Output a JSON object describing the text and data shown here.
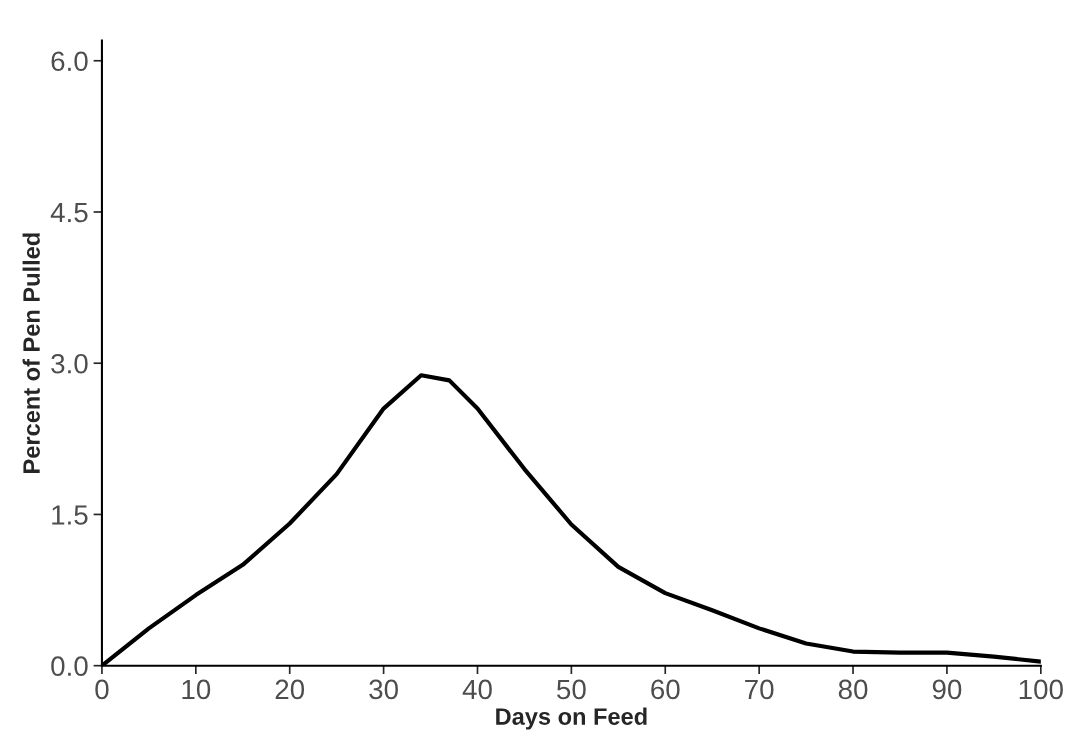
{
  "chart_data": {
    "type": "line",
    "xlabel": "Days on Feed",
    "ylabel": "Percent of Pen Pulled",
    "x": [
      0,
      5,
      10,
      15,
      20,
      25,
      30,
      34,
      37,
      40,
      45,
      50,
      55,
      60,
      65,
      70,
      75,
      80,
      85,
      90,
      95,
      100
    ],
    "series": [
      {
        "color": "#000000",
        "values": [
          0,
          0.37,
          0.7,
          1.0,
          1.41,
          1.9,
          2.55,
          2.88,
          2.83,
          2.55,
          1.95,
          1.4,
          0.98,
          0.72,
          0.55,
          0.37,
          0.22,
          0.14,
          0.13,
          0.13,
          0.09,
          0.04
        ]
      }
    ],
    "xlim": [
      0,
      100
    ],
    "xticks": [
      0,
      10,
      20,
      30,
      40,
      50,
      60,
      70,
      80,
      90,
      100
    ],
    "ylim": [
      0,
      6.2
    ],
    "yticks": [
      {
        "value": 0,
        "label": "0.0"
      },
      {
        "value": 1.5,
        "label": "1.5"
      },
      {
        "value": 3,
        "label": "3.0"
      },
      {
        "value": 4.5,
        "label": "4.5"
      },
      {
        "value": 6,
        "label": "6.0"
      }
    ],
    "line_style": "solid",
    "marker": "none"
  }
}
